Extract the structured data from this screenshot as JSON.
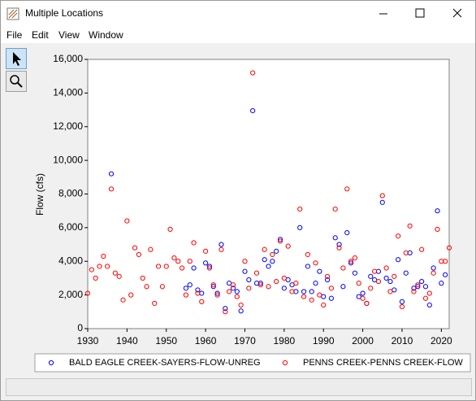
{
  "window": {
    "title": "Multiple Locations",
    "menu": [
      "File",
      "Edit",
      "View",
      "Window"
    ]
  },
  "chart_data": {
    "type": "scatter",
    "y_label": "Flow (cfs)",
    "xlim": [
      1930,
      2022
    ],
    "xticks": [
      1930,
      1940,
      1950,
      1960,
      1970,
      1980,
      1990,
      2000,
      2010,
      2020
    ],
    "ylim": [
      0,
      16000
    ],
    "yticks": [
      0,
      {
        "value": 2000,
        "label": "2,000"
      },
      {
        "value": 4000,
        "label": "4,000"
      },
      {
        "value": 6000,
        "label": "6,000"
      },
      {
        "value": 8000,
        "label": "8,000"
      },
      {
        "value": 10000,
        "label": "10,000"
      },
      {
        "value": 12000,
        "label": "12,000"
      },
      {
        "value": 14000,
        "label": "14,000"
      },
      {
        "value": 16000,
        "label": "16,000"
      }
    ],
    "grid": false,
    "legend": "bottom",
    "series": [
      {
        "name": "BALD EAGLE CREEK-SAYERS-FLOW-UNREG",
        "color": "#0000ff",
        "x": [
          1936,
          1955,
          1956,
          1957,
          1958,
          1959,
          1960,
          1961,
          1962,
          1963,
          1964,
          1965,
          1966,
          1967,
          1968,
          1969,
          1970,
          1971,
          1972,
          1973,
          1974,
          1975,
          1976,
          1977,
          1978,
          1979,
          1980,
          1981,
          1982,
          1983,
          1984,
          1985,
          1986,
          1987,
          1988,
          1989,
          1990,
          1991,
          1992,
          1993,
          1994,
          1995,
          1996,
          1997,
          1998,
          1999,
          2000,
          2001,
          2002,
          2003,
          2004,
          2005,
          2006,
          2007,
          2008,
          2009,
          2010,
          2011,
          2012,
          2013,
          2014,
          2015,
          2016,
          2017,
          2018,
          2019,
          2020,
          2021
        ],
        "values": [
          9200,
          2400,
          2600,
          3600,
          2300,
          2100,
          3900,
          3700,
          2500,
          2100,
          5000,
          1200,
          2700,
          2400,
          2200,
          1050,
          3400,
          2900,
          12950,
          2700,
          2700,
          4100,
          3700,
          4000,
          4600,
          5300,
          2400,
          2900,
          2600,
          2200,
          6000,
          2200,
          3700,
          2200,
          2700,
          3400,
          1900,
          2900,
          1800,
          5400,
          5000,
          2500,
          5700,
          3900,
          3300,
          1900,
          2100,
          1500,
          3100,
          2900,
          3400,
          7500,
          3000,
          2800,
          2300,
          4100,
          1600,
          3300,
          4500,
          2400,
          2500,
          2800,
          2500,
          1400,
          3600,
          7000,
          2700,
          3200
        ]
      },
      {
        "name": "PENNS CREEK-PENNS CREEK-FLOW",
        "color": "#ff0000",
        "x": [
          1930,
          1931,
          1932,
          1933,
          1934,
          1935,
          1936,
          1937,
          1938,
          1939,
          1940,
          1941,
          1942,
          1943,
          1944,
          1945,
          1946,
          1947,
          1948,
          1949,
          1950,
          1951,
          1952,
          1953,
          1954,
          1955,
          1956,
          1957,
          1958,
          1959,
          1960,
          1961,
          1962,
          1963,
          1964,
          1965,
          1966,
          1967,
          1968,
          1969,
          1970,
          1971,
          1972,
          1973,
          1974,
          1975,
          1976,
          1977,
          1978,
          1979,
          1980,
          1981,
          1982,
          1983,
          1984,
          1985,
          1986,
          1987,
          1988,
          1989,
          1990,
          1991,
          1992,
          1993,
          1994,
          1995,
          1996,
          1997,
          1998,
          1999,
          2000,
          2001,
          2002,
          2003,
          2004,
          2005,
          2006,
          2007,
          2008,
          2009,
          2010,
          2011,
          2012,
          2013,
          2014,
          2015,
          2016,
          2017,
          2018,
          2019,
          2020,
          2021,
          2022
        ],
        "values": [
          2100,
          3500,
          3000,
          3700,
          4300,
          3700,
          8300,
          3300,
          3100,
          1700,
          6400,
          2000,
          4800,
          4400,
          3000,
          2500,
          4700,
          1500,
          3700,
          2500,
          3700,
          5900,
          4200,
          4000,
          3600,
          2000,
          4000,
          5100,
          2100,
          1600,
          4600,
          3600,
          2600,
          2000,
          4700,
          1000,
          2200,
          2600,
          1900,
          1400,
          4000,
          2400,
          15200,
          3300,
          2600,
          4700,
          2500,
          4400,
          2800,
          5200,
          3000,
          4900,
          2200,
          2700,
          7100,
          1900,
          4400,
          1700,
          3900,
          2000,
          1400,
          3100,
          2400,
          7100,
          4800,
          3600,
          8300,
          4000,
          4200,
          2700,
          1800,
          1500,
          2400,
          3400,
          2800,
          7900,
          3600,
          2200,
          3100,
          5500,
          1300,
          4500,
          6100,
          2200,
          2600,
          4700,
          1800,
          2100,
          3300,
          5900,
          4000,
          4000,
          4800
        ]
      }
    ]
  }
}
